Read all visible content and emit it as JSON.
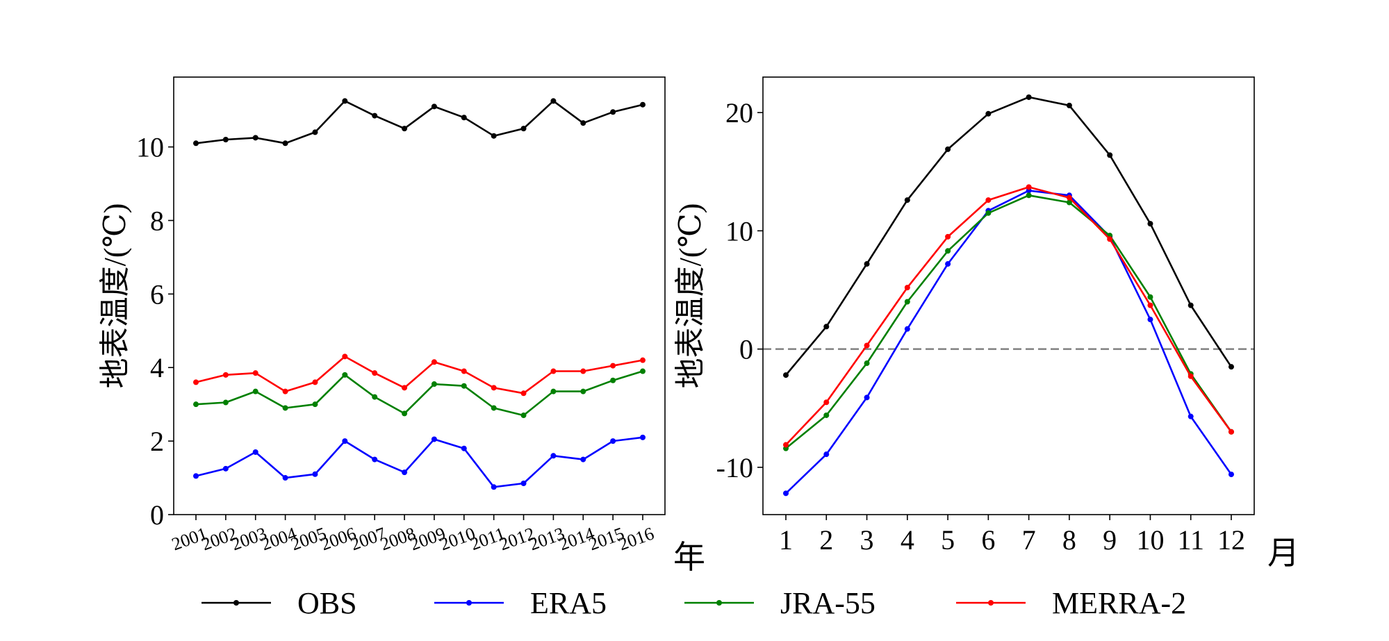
{
  "chart_data": [
    {
      "type": "line",
      "title": "",
      "ylabel": "地表温度/(℃)",
      "xlabel": "年",
      "categories": [
        "2001",
        "2002",
        "2003",
        "2004",
        "2005",
        "2006",
        "2007",
        "2008",
        "2009",
        "2010",
        "2011",
        "2012",
        "2013",
        "2014",
        "2015",
        "2016"
      ],
      "ylim": [
        0,
        11.9
      ],
      "yticks": [
        0,
        2,
        4,
        6,
        8,
        10
      ],
      "series": [
        {
          "name": "OBS",
          "values": [
            10.1,
            10.2,
            10.25,
            10.1,
            10.4,
            11.25,
            10.85,
            10.5,
            11.1,
            10.8,
            10.3,
            10.5,
            11.25,
            10.65,
            10.95,
            11.15
          ]
        },
        {
          "name": "ERA5",
          "values": [
            1.05,
            1.25,
            1.7,
            1.0,
            1.1,
            2.0,
            1.5,
            1.15,
            2.05,
            1.8,
            0.75,
            0.85,
            1.6,
            1.5,
            2.0,
            2.1
          ]
        },
        {
          "name": "JRA-55",
          "values": [
            3.0,
            3.05,
            3.35,
            2.9,
            3.0,
            3.8,
            3.2,
            2.75,
            3.55,
            3.5,
            2.9,
            2.7,
            3.35,
            3.35,
            3.65,
            3.9
          ]
        },
        {
          "name": "MERRA-2",
          "values": [
            3.6,
            3.8,
            3.85,
            3.35,
            3.6,
            4.3,
            3.85,
            3.45,
            4.15,
            3.9,
            3.45,
            3.3,
            3.9,
            3.9,
            4.05,
            4.2
          ]
        }
      ]
    },
    {
      "type": "line",
      "title": "",
      "ylabel": "地表温度/(℃)",
      "xlabel": "月",
      "categories": [
        "1",
        "2",
        "3",
        "4",
        "5",
        "6",
        "7",
        "8",
        "9",
        "10",
        "11",
        "12"
      ],
      "ylim": [
        -14,
        23
      ],
      "yticks": [
        -10,
        0,
        10,
        20
      ],
      "yticklabels": [
        "-10",
        "0",
        "10",
        "20"
      ],
      "reference_line": {
        "y": 0,
        "style": "dashed",
        "color": "#808080"
      },
      "series": [
        {
          "name": "OBS",
          "values": [
            -2.2,
            1.9,
            7.2,
            12.6,
            16.9,
            19.9,
            21.3,
            20.6,
            16.4,
            10.6,
            3.7,
            -1.5
          ]
        },
        {
          "name": "ERA5",
          "values": [
            -12.2,
            -8.9,
            -4.1,
            1.7,
            7.2,
            11.7,
            13.4,
            13.0,
            9.5,
            2.5,
            -5.7,
            -10.6
          ]
        },
        {
          "name": "JRA-55",
          "values": [
            -8.4,
            -5.6,
            -1.2,
            4.0,
            8.3,
            11.5,
            13.0,
            12.4,
            9.6,
            4.4,
            -2.1,
            -7.0
          ]
        },
        {
          "name": "MERRA-2",
          "values": [
            -8.1,
            -4.5,
            0.3,
            5.2,
            9.5,
            12.6,
            13.7,
            12.8,
            9.3,
            3.7,
            -2.3,
            -7.0
          ]
        }
      ]
    }
  ],
  "legend": [
    {
      "name": "OBS",
      "color": "#000000"
    },
    {
      "name": "ERA5",
      "color": "#0000ff"
    },
    {
      "name": "JRA-55",
      "color": "#008000"
    },
    {
      "name": "MERRA-2",
      "color": "#ff0000"
    }
  ],
  "colors": {
    "OBS": "#000000",
    "ERA5": "#0000ff",
    "JRA-55": "#008000",
    "MERRA-2": "#ff0000",
    "reference": "#808080"
  }
}
